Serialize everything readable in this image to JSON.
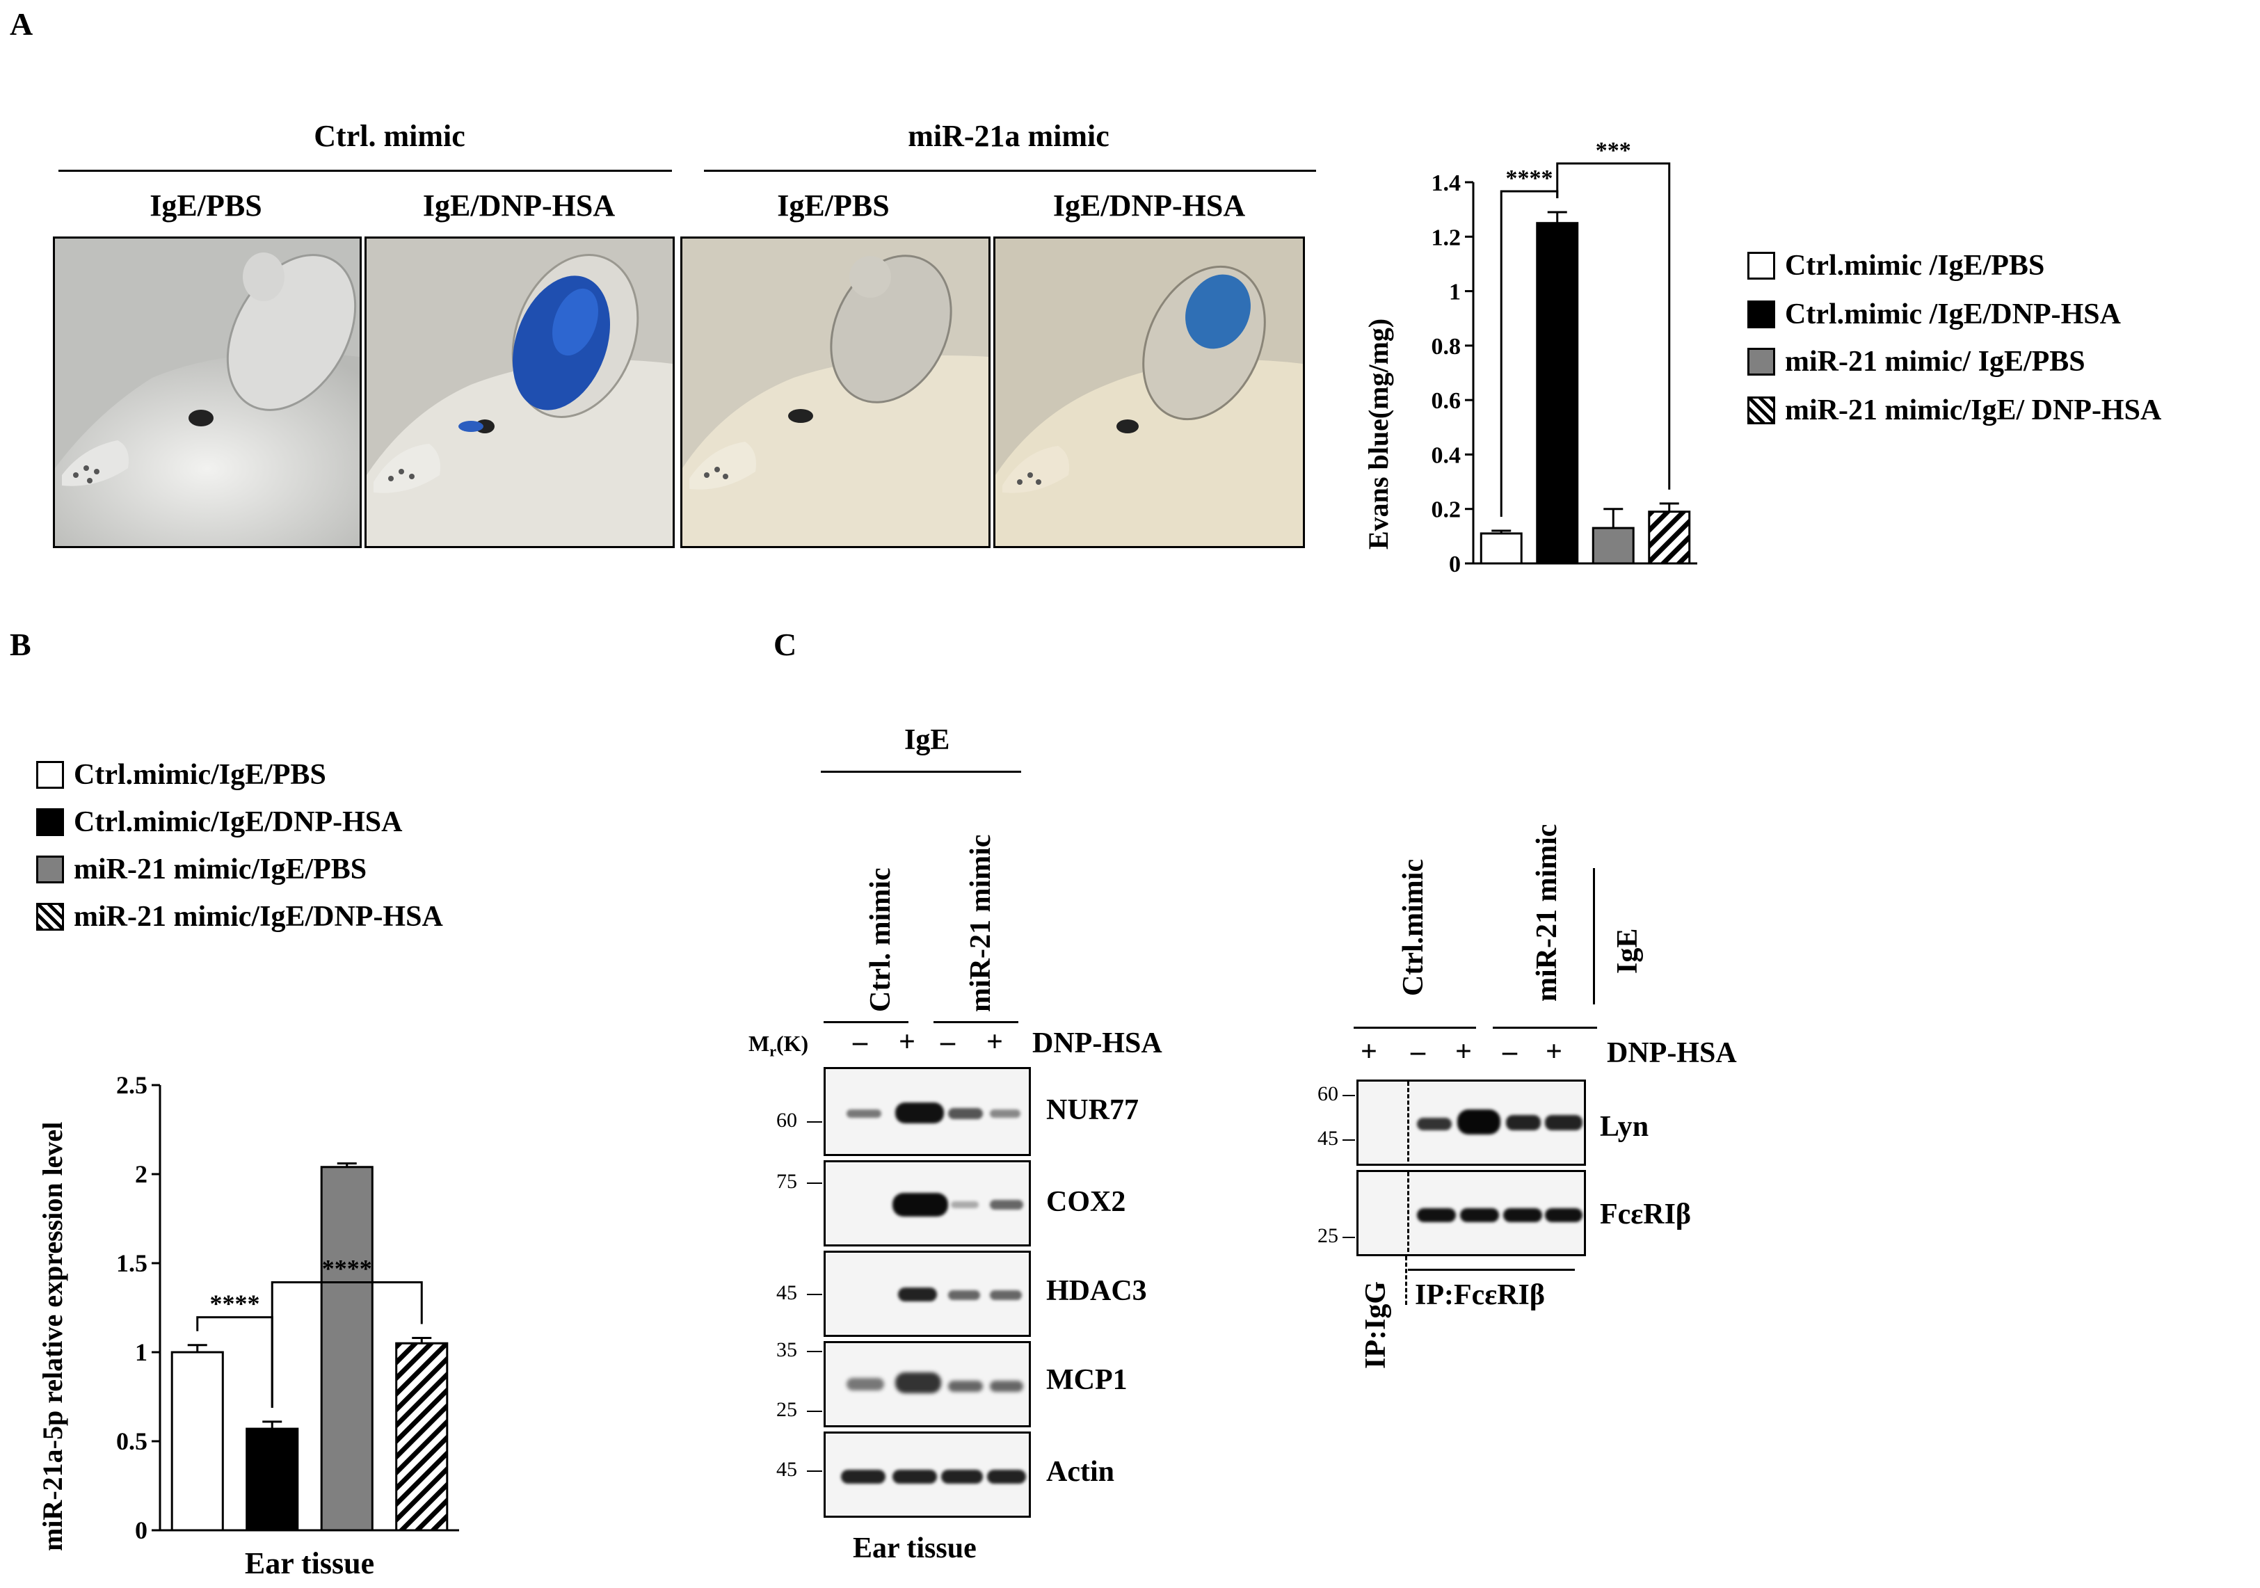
{
  "panels": {
    "a": "A",
    "b": "B",
    "c": "C"
  },
  "panel_a": {
    "group_headers": [
      "Ctrl.  mimic",
      "miR-21a mimic"
    ],
    "photo_labels": [
      "IgE/PBS",
      "IgE/DNP-HSA",
      "IgE/PBS",
      "IgE/DNP-HSA"
    ],
    "legend": [
      {
        "label": "Ctrl.mimic  /IgE/PBS",
        "swatch": "white"
      },
      {
        "label": "Ctrl.mimic  /IgE/DNP-HSA",
        "swatch": "black"
      },
      {
        "label": "miR-21 mimic/ IgE/PBS",
        "swatch": "gray"
      },
      {
        "label": "miR-21 mimic/IgE/ DNP-HSA",
        "swatch": "hatch"
      }
    ]
  },
  "panel_b": {
    "legend": [
      {
        "label": "Ctrl.mimic/IgE/PBS",
        "swatch": "white"
      },
      {
        "label": "Ctrl.mimic/IgE/DNP-HSA",
        "swatch": "black"
      },
      {
        "label": "miR-21 mimic/IgE/PBS",
        "swatch": "gray"
      },
      {
        "label": "miR-21 mimic/IgE/DNP-HSA",
        "swatch": "hatch"
      }
    ]
  },
  "panel_c": {
    "left": {
      "top_label": "IgE",
      "lane_groups": [
        "Ctrl.  mimic",
        "miR-21 mimic"
      ],
      "mr_label": "M",
      "mr_sub": "r",
      "mr_suffix": "(K)",
      "treatment_label": "DNP-HSA",
      "lane_signs": [
        "–",
        "+",
        "–",
        "+"
      ],
      "blots": [
        "NUR77",
        "COX2",
        "HDAC3",
        "MCP1",
        "Actin"
      ],
      "markers": [
        [
          "60"
        ],
        [
          "75"
        ],
        [
          "45"
        ],
        [
          "35",
          "25"
        ],
        [
          "45"
        ]
      ],
      "bottom_label": "Ear tissue"
    },
    "right": {
      "lane_groups": [
        "Ctrl.mimic",
        "miR-21 mimic"
      ],
      "side_label": "IgE",
      "treatment_label": "DNP-HSA",
      "lane_signs": [
        "+",
        "–",
        "+",
        "–",
        "+"
      ],
      "blots": [
        "Lyn",
        "FcεRIβ"
      ],
      "markers": [
        [
          "60",
          "45"
        ],
        [
          "25"
        ]
      ],
      "ip_igg": "IP:IgG",
      "ip_fc": "IP:FcεRIβ"
    }
  },
  "chart_data": [
    {
      "type": "bar",
      "categories": [
        "Ctrl.mimic  /IgE/PBS",
        "Ctrl.mimic  /IgE/DNP-HSA",
        "miR-21 mimic/ IgE/PBS",
        "miR-21 mimic/IgE/ DNP-HSA"
      ],
      "values": [
        0.11,
        1.25,
        0.13,
        0.19
      ],
      "errors": [
        0.01,
        0.04,
        0.07,
        0.03
      ],
      "fills": [
        "#ffffff",
        "#000000",
        "#808080",
        "hatch"
      ],
      "ylabel": "Evans blue(mg/mg)",
      "xlabel": "",
      "ylim": [
        0,
        1.4
      ],
      "yticks": [
        0,
        0.2,
        0.4,
        0.6,
        0.8,
        1,
        1.2,
        1.4
      ],
      "significance": [
        {
          "from": 0,
          "to": 1,
          "label": "****"
        },
        {
          "from": 1,
          "to": 3,
          "label": "***"
        }
      ]
    },
    {
      "type": "bar",
      "categories": [
        "Ctrl.mimic/IgE/PBS",
        "Ctrl.mimic/IgE/DNP-HSA",
        "miR-21 mimic/IgE/PBS",
        "miR-21 mimic/IgE/DNP-HSA"
      ],
      "values": [
        1.0,
        0.57,
        2.04,
        1.05
      ],
      "errors": [
        0.04,
        0.04,
        0.02,
        0.03
      ],
      "fills": [
        "#ffffff",
        "#000000",
        "#808080",
        "hatch"
      ],
      "ylabel": "miR-21a-5p relative expression level",
      "xlabel": "Ear tissue",
      "ylim": [
        0,
        2.5
      ],
      "yticks": [
        0,
        0.5,
        1,
        1.5,
        2,
        2.5
      ],
      "significance": [
        {
          "from": 0,
          "to": 1,
          "label": "****"
        },
        {
          "from": 1,
          "to": 3,
          "label": "****"
        }
      ]
    }
  ]
}
